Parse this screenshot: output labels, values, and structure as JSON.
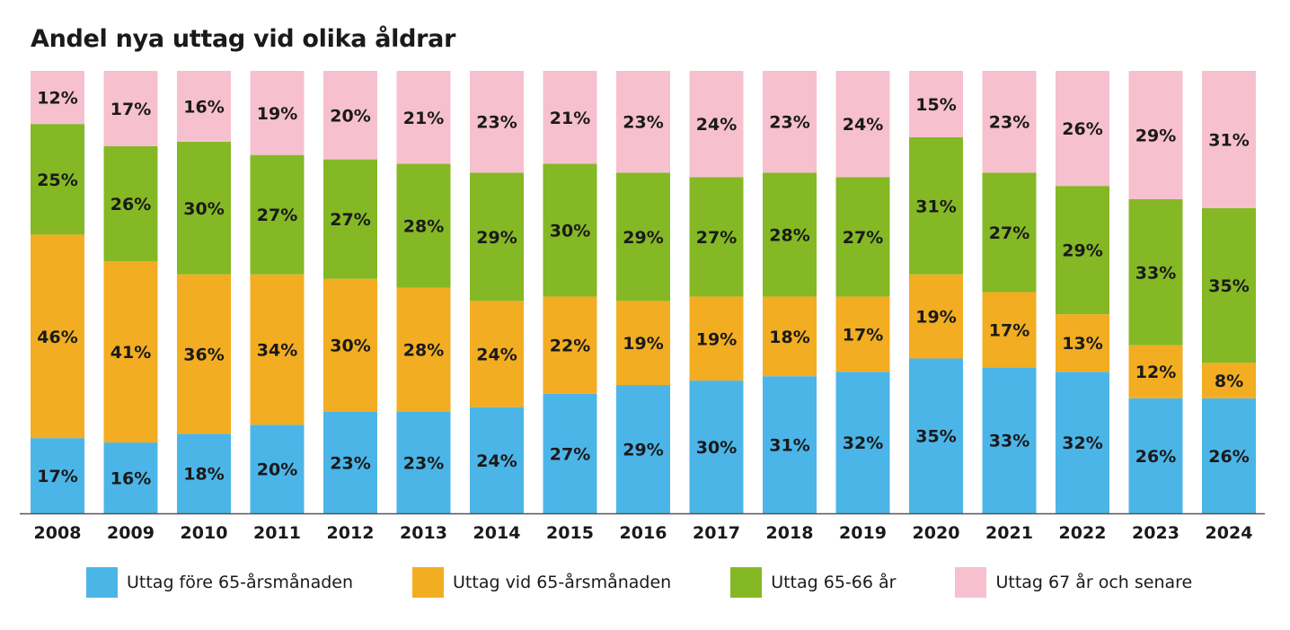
{
  "chart_data": {
    "type": "bar",
    "stacked": true,
    "title": "Andel nya uttag vid olika åldrar",
    "xlabel": "",
    "ylabel": "",
    "ylim": [
      0,
      100
    ],
    "categories": [
      "2008",
      "2009",
      "2010",
      "2011",
      "2012",
      "2013",
      "2014",
      "2015",
      "2016",
      "2017",
      "2018",
      "2019",
      "2020",
      "2021",
      "2022",
      "2023",
      "2024"
    ],
    "series": [
      {
        "name": "Uttag före 65-årsmånaden",
        "color": "#4cb5e8",
        "values": [
          17,
          16,
          18,
          20,
          23,
          23,
          24,
          27,
          29,
          30,
          31,
          32,
          35,
          33,
          32,
          26,
          26
        ]
      },
      {
        "name": "Uttag vid 65-årsmånaden",
        "color": "#f2ad22",
        "values": [
          46,
          41,
          36,
          34,
          30,
          28,
          24,
          22,
          19,
          19,
          18,
          17,
          19,
          17,
          13,
          12,
          8
        ]
      },
      {
        "name": "Uttag 65-66 år",
        "color": "#85b825",
        "values": [
          25,
          26,
          30,
          27,
          27,
          28,
          29,
          30,
          29,
          27,
          28,
          27,
          31,
          27,
          29,
          33,
          35
        ]
      },
      {
        "name": "Uttag 67 år och senare",
        "color": "#f7c0cf",
        "values": [
          12,
          17,
          16,
          19,
          20,
          21,
          23,
          21,
          23,
          24,
          23,
          24,
          15,
          23,
          26,
          29,
          31
        ]
      }
    ],
    "legend_position": "bottom",
    "value_label_suffix": "%"
  }
}
